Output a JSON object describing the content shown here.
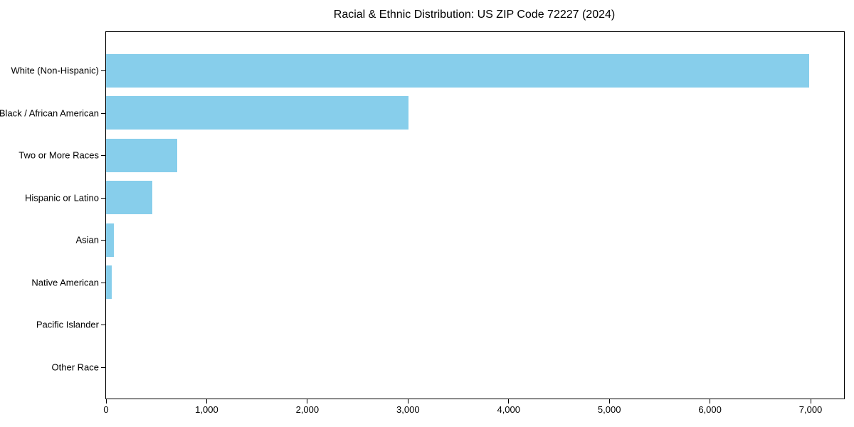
{
  "chart_data": {
    "type": "bar",
    "orientation": "horizontal",
    "title": "Racial & Ethnic Distribution: US ZIP Code 72227 (2024)",
    "xlabel": "",
    "ylabel": "",
    "categories": [
      "White (Non-Hispanic)",
      "Black / African American",
      "Two or More Races",
      "Hispanic or Latino",
      "Asian",
      "Native American",
      "Pacific Islander",
      "Other Race"
    ],
    "values": [
      6985,
      3005,
      710,
      460,
      75,
      60,
      0,
      0
    ],
    "xlim": [
      0,
      7332
    ],
    "xticks": [
      0,
      1000,
      2000,
      3000,
      4000,
      5000,
      6000,
      7000
    ],
    "xtick_labels": [
      "0",
      "1,000",
      "2,000",
      "3,000",
      "4,000",
      "5,000",
      "6,000",
      "7,000"
    ],
    "bar_color": "#87CEEB",
    "spine_color": "#000000",
    "background_color": "#ffffff",
    "grid": false,
    "legend": null
  }
}
